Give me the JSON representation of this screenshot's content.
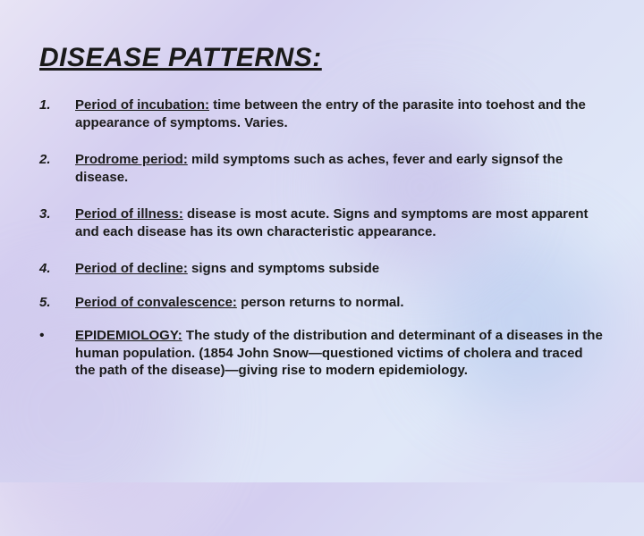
{
  "title": "DISEASE PATTERNS:",
  "items": [
    {
      "marker": "1.",
      "term": "Period of incubation:",
      "desc": " time between the entry of the parasite into toehost and the appearance of symptoms. Varies.",
      "boldDesc": true
    },
    {
      "marker": "2.",
      "term": "Prodrome period:",
      "desc": " mild symptoms such as aches, fever and early signsof the disease.",
      "boldDesc": true
    },
    {
      "marker": "3.",
      "term": "Period of illness:",
      "desc": " disease is most acute. Signs and symptoms are most apparent and each disease has its own characteristic appearance.",
      "boldDesc": true
    },
    {
      "marker": "4.",
      "term": "Period of decline:",
      "desc": " signs and symptoms subside",
      "boldDesc": true
    },
    {
      "marker": "5.",
      "term": "Period of convalescence:",
      "desc": " person returns to normal.",
      "boldDesc": true
    },
    {
      "marker": "•",
      "term": "EPIDEMIOLOGY:",
      "desc": " The study of the distribution and determinant of a diseases in the human population. (1854 John Snow—questioned victims of cholera and traced the path of the disease)—giving rise to modern epidemiology.",
      "boldDesc": true
    }
  ],
  "colors": {
    "text": "#1a1a1a",
    "bg_gradient_start": "#e8e4f5",
    "bg_gradient_end": "#d8d4f2"
  },
  "typography": {
    "title_fontsize": 30,
    "body_fontsize": 15,
    "font_family": "Arial"
  }
}
